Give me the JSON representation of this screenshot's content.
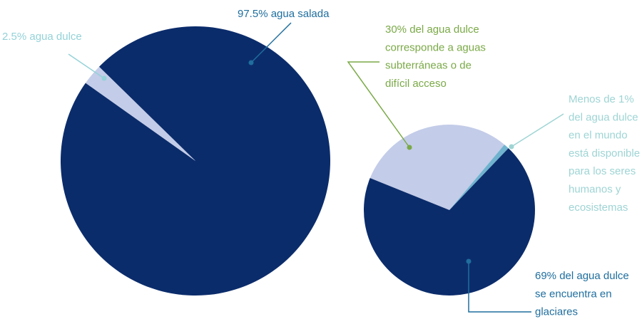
{
  "chart_data": [
    {
      "type": "pie",
      "labels": [
        [
          "97.5% agua salada"
        ],
        [
          "2.5% agua dulce"
        ]
      ],
      "values": [
        97.5,
        2.5
      ],
      "colors": [
        "#0b2c6b",
        "#c3cce8"
      ],
      "label_colors": [
        "#1f6e9e",
        "#94d2d8"
      ]
    },
    {
      "type": "pie",
      "labels": [
        [
          "30% del agua dulce",
          "corresponde a aguas",
          "subterráneas o de",
          "difícil acceso"
        ],
        [
          "Menos de 1%",
          "del agua dulce",
          "en el mundo",
          "está disponible",
          "para los seres",
          "humanos y",
          "ecosistemas"
        ],
        [
          "69% del agua dulce",
          "se encuentra en",
          "glaciares"
        ]
      ],
      "values": [
        30,
        1,
        69
      ],
      "colors": [
        "#c3cce8",
        "#6fb3cf",
        "#0b2c6b"
      ],
      "label_colors": [
        "#7aa947",
        "#9fd4d4",
        "#1f6e9e"
      ]
    }
  ]
}
